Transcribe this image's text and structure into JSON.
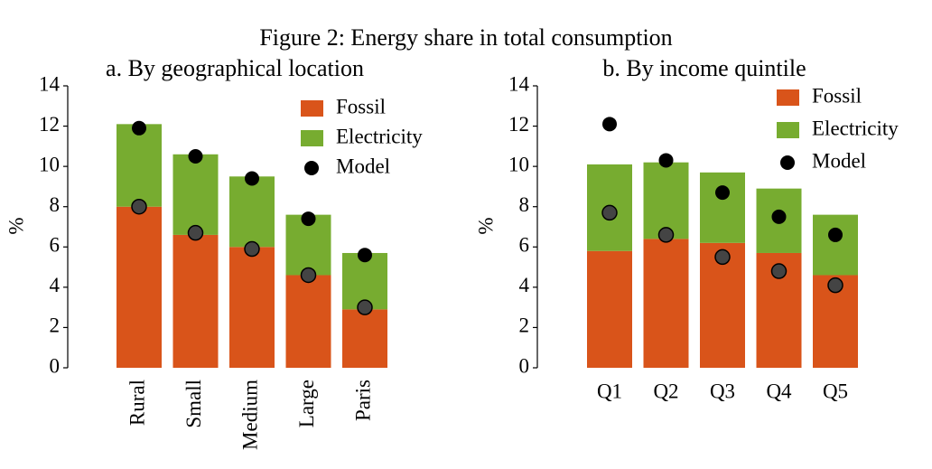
{
  "title": "Figure 2: Energy share in total consumption",
  "chart_data": [
    {
      "type": "bar",
      "stacked": true,
      "title": "a. By geographical location",
      "ylabel": "%",
      "categories": [
        "Rural",
        "Small",
        "Medium",
        "Large",
        "Paris"
      ],
      "ylim": [
        0,
        14
      ],
      "yticks": [
        0,
        2,
        4,
        6,
        8,
        10,
        12,
        14
      ],
      "series": [
        {
          "name": "Fossil",
          "color": "#d9541a",
          "values": [
            8.0,
            6.6,
            6.0,
            4.6,
            2.9
          ]
        },
        {
          "name": "Electricity",
          "color": "#77ac30",
          "values": [
            4.1,
            4.0,
            3.5,
            3.0,
            2.8
          ]
        },
        {
          "name": "Model",
          "type": "scatter",
          "color": "#000000",
          "values": [
            11.9,
            10.5,
            9.4,
            7.4,
            5.6
          ],
          "fossil_color": "#444444",
          "fossil_values": [
            8.0,
            6.7,
            5.9,
            4.6,
            3.0
          ]
        }
      ]
    },
    {
      "type": "bar",
      "stacked": true,
      "title": "b. By income quintile",
      "ylabel": "%",
      "categories": [
        "Q1",
        "Q2",
        "Q3",
        "Q4",
        "Q5"
      ],
      "ylim": [
        0,
        14
      ],
      "yticks": [
        0,
        2,
        4,
        6,
        8,
        10,
        12,
        14
      ],
      "series": [
        {
          "name": "Fossil",
          "color": "#d9541a",
          "values": [
            5.8,
            6.4,
            6.2,
            5.7,
            4.6
          ]
        },
        {
          "name": "Electricity",
          "color": "#77ac30",
          "values": [
            4.3,
            3.8,
            3.5,
            3.2,
            3.0
          ]
        },
        {
          "name": "Model",
          "type": "scatter",
          "color": "#000000",
          "values": [
            12.1,
            10.3,
            8.7,
            7.5,
            6.6
          ],
          "fossil_color": "#444444",
          "fossil_values": [
            7.7,
            6.6,
            5.5,
            4.8,
            4.1
          ]
        }
      ]
    }
  ]
}
